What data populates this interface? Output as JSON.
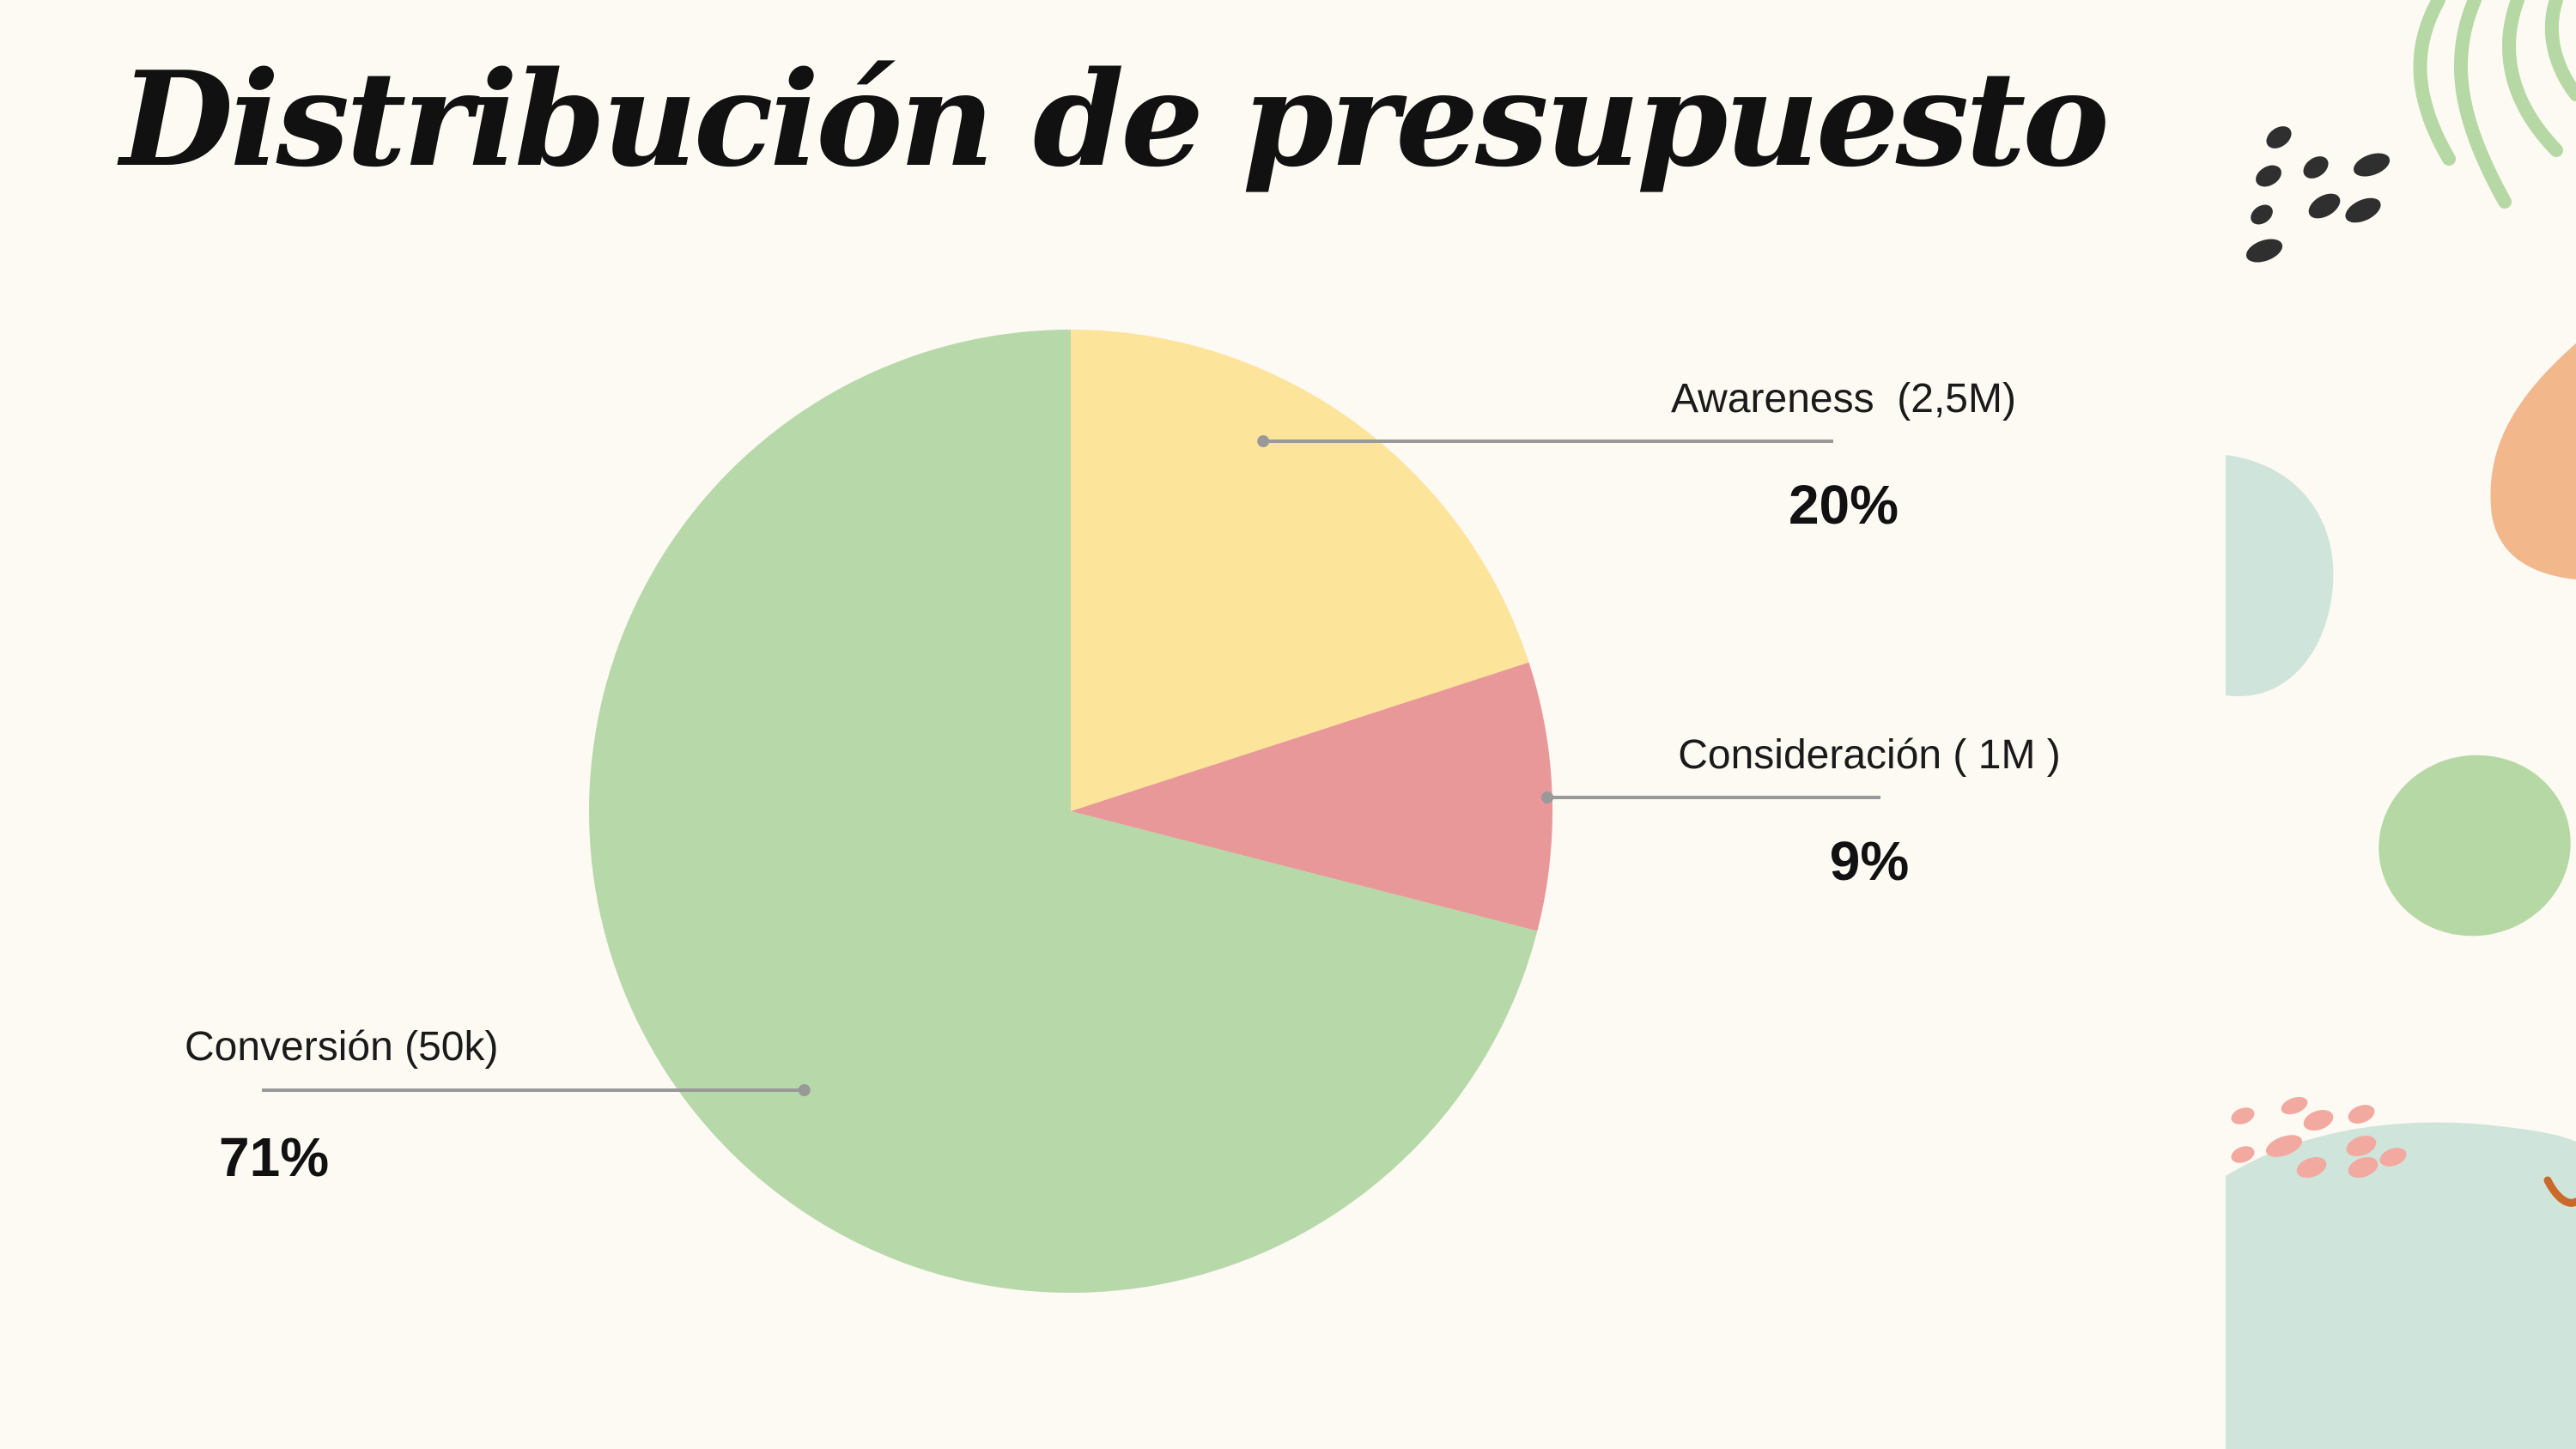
{
  "title": "Distribución de presupuesto",
  "chart_data": {
    "type": "pie",
    "title": "",
    "slices": [
      {
        "label": "Awareness  (2,5M)",
        "percent_label": "20%",
        "value": 20,
        "color": "#fce49b"
      },
      {
        "label": "Consideración ( 1M )",
        "percent_label": "9%",
        "value": 9,
        "color": "#e89898"
      },
      {
        "label": "Conversión (50k)",
        "percent_label": "71%",
        "value": 71,
        "color": "#b7d8a8"
      }
    ],
    "start_angle_deg": 0,
    "direction": "clockwise",
    "leader_line_color": "#999999"
  },
  "decoration": {
    "colors": {
      "light_green": "#b5d8a4",
      "mint": "#cfe4da",
      "peach": "#f2b78a",
      "pink_dots": "#f2a9a0",
      "dark_seeds": "#2f2f2f",
      "rust": "#c96a2a"
    }
  }
}
